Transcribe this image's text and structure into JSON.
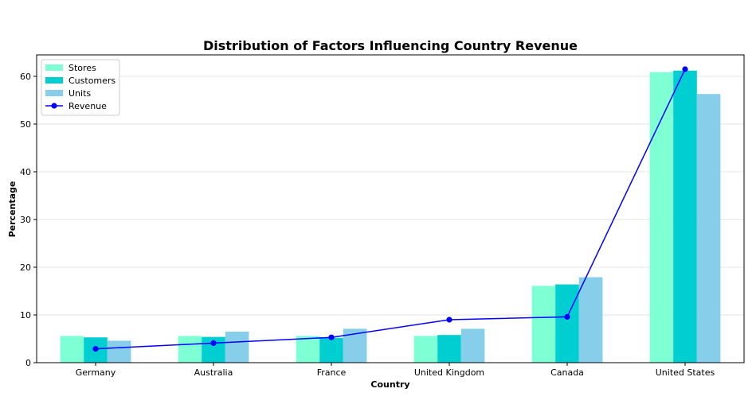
{
  "chart_data": {
    "type": "bar",
    "title": "Distribution of Factors Influencing Country Revenue",
    "xlabel": "Country",
    "ylabel": "Percentage",
    "categories": [
      "Germany",
      "Australia",
      "France",
      "United Kingdom",
      "Canada",
      "United States"
    ],
    "series": [
      {
        "name": "Stores",
        "type": "bar",
        "color": "#7fffd4",
        "values": [
          5.6,
          5.6,
          5.6,
          5.6,
          16.1,
          60.9
        ]
      },
      {
        "name": "Customers",
        "type": "bar",
        "color": "#00ced1",
        "values": [
          5.3,
          5.4,
          5.2,
          5.8,
          16.4,
          61.2
        ]
      },
      {
        "name": "Units",
        "type": "bar",
        "color": "#87ceeb",
        "values": [
          4.6,
          6.5,
          7.1,
          7.1,
          17.9,
          56.3
        ]
      },
      {
        "name": "Revenue",
        "type": "line",
        "color": "#0000ff",
        "values": [
          2.9,
          4.1,
          5.3,
          9.0,
          9.6,
          61.5
        ]
      }
    ],
    "yticks": [
      0,
      10,
      20,
      30,
      40,
      50,
      60
    ],
    "ylim": [
      0,
      64.5
    ],
    "grid": true,
    "legend": "top-left"
  }
}
